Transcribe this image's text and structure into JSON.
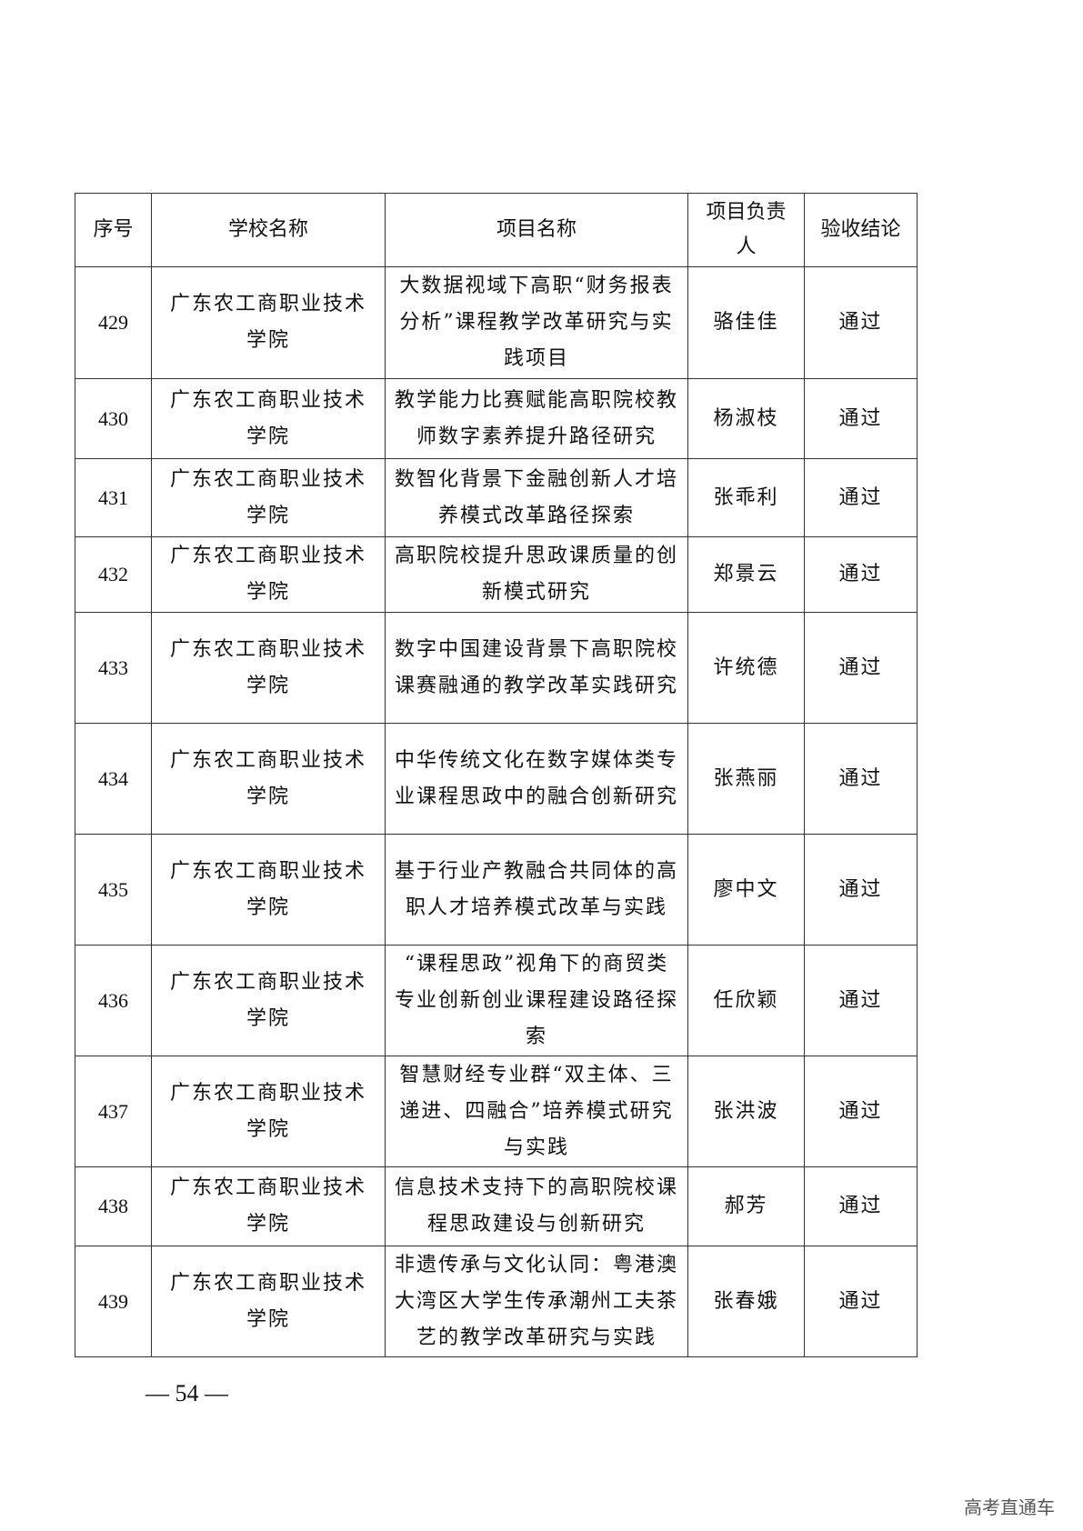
{
  "table": {
    "headers": [
      "序号",
      "学校名称",
      "项目名称",
      "项目负责人",
      "验收结论"
    ],
    "rows": [
      {
        "no": "429",
        "school": "广东农工商职业技术学院",
        "project": "大数据视域下高职“财务报表分析”课程教学改革研究与实践项目",
        "leader": "骆佳佳",
        "result": "通过"
      },
      {
        "no": "430",
        "school": "广东农工商职业技术学院",
        "project": "教学能力比赛赋能高职院校教师数字素养提升路径研究",
        "leader": "杨淑枝",
        "result": "通过"
      },
      {
        "no": "431",
        "school": "广东农工商职业技术学院",
        "project": "数智化背景下金融创新人才培养模式改革路径探索",
        "leader": "张乖利",
        "result": "通过"
      },
      {
        "no": "432",
        "school": "广东农工商职业技术学院",
        "project": "高职院校提升思政课质量的创新模式研究",
        "leader": "郑景云",
        "result": "通过"
      },
      {
        "no": "433",
        "school": "广东农工商职业技术学院",
        "project": "数字中国建设背景下高职院校课赛融通的教学改革实践研究",
        "leader": "许统德",
        "result": "通过"
      },
      {
        "no": "434",
        "school": "广东农工商职业技术学院",
        "project": "中华传统文化在数字媒体类专业课程思政中的融合创新研究",
        "leader": "张燕丽",
        "result": "通过"
      },
      {
        "no": "435",
        "school": "广东农工商职业技术学院",
        "project": "基于行业产教融合共同体的高职人才培养模式改革与实践",
        "leader": "廖中文",
        "result": "通过"
      },
      {
        "no": "436",
        "school": "广东农工商职业技术学院",
        "project": "“课程思政”视角下的商贸类专业创新创业课程建设路径探索",
        "leader": "任欣颖",
        "result": "通过"
      },
      {
        "no": "437",
        "school": "广东农工商职业技术学院",
        "project": "智慧财经专业群“双主体、三递进、四融合”培养模式研究与实践",
        "leader": "张洪波",
        "result": "通过"
      },
      {
        "no": "438",
        "school": "广东农工商职业技术学院",
        "project": "信息技术支持下的高职院校课程思政建设与创新研究",
        "leader": "郝芳",
        "result": "通过"
      },
      {
        "no": "439",
        "school": "广东农工商职业技术学院",
        "project": "非遗传承与文化认同：粤港澳大湾区大学生传承潮州工夫茶艺的教学改革研究与实践",
        "leader": "张春娥",
        "result": "通过"
      }
    ]
  },
  "page_number": "— 54 —",
  "watermark": "高考直通车"
}
